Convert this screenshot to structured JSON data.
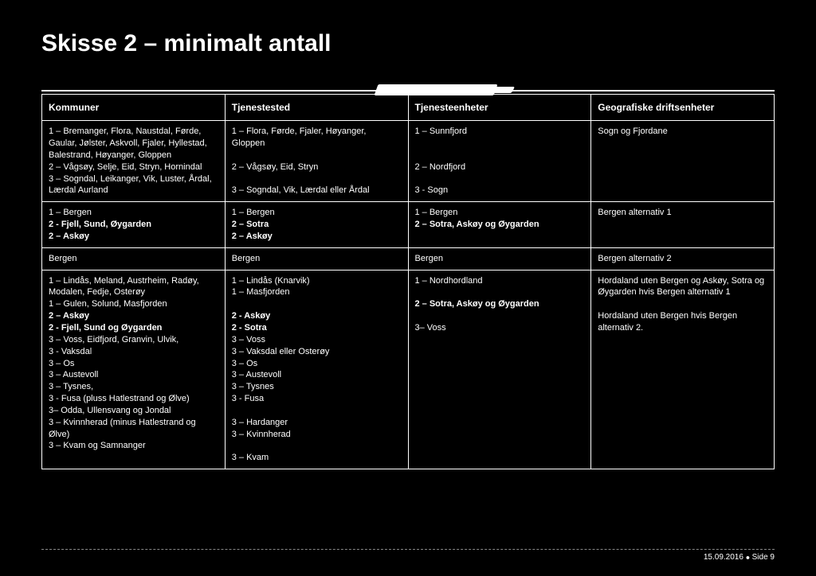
{
  "title": "Skisse 2 – minimalt antall",
  "headers": {
    "c1": "Kommuner",
    "c2": "Tjenestested",
    "c3": "Tjenesteenheter",
    "c4": "Geografiske driftsenheter"
  },
  "row1": {
    "c1": "1 – Bremanger, Flora, Naustdal, Førde, Gaular, Jølster, Askvoll, Fjaler, Hyllestad, Balestrand, Høyanger, Gloppen\n2 – Vågsøy, Selje, Eid, Stryn, Hornindal\n3 – Sogndal, Leikanger, Vik, Luster, Årdal, Lærdal Aurland",
    "c2": "1 – Flora, Førde, Fjaler, Høyanger, Gloppen\n\n2 – Vågsøy, Eid, Stryn\n\n3 – Sogndal, Vik, Lærdal eller Årdal",
    "c3": "1 – Sunnfjord\n\n\n2 – Nordfjord\n\n3 - Sogn",
    "c4": "Sogn og Fjordane"
  },
  "row2": {
    "c1_l1": "1 – Bergen",
    "c1_l2": "2 - Fjell, Sund, Øygarden",
    "c1_l3": "2 – Askøy",
    "c2_l1": "1 – Bergen",
    "c2_l2": "2 – Sotra",
    "c2_l3": "2 – Askøy",
    "c3_l1": "1 – Bergen",
    "c3_l2": "2 – Sotra, Askøy og Øygarden",
    "c4": "Bergen alternativ 1"
  },
  "row3": {
    "c1": "Bergen",
    "c2": "Bergen",
    "c3": "Bergen",
    "c4": "Bergen alternativ 2"
  },
  "row4": {
    "c1_a": "1 – Lindås, Meland, Austrheim, Radøy, Modalen, Fedje, Osterøy\n1 – Gulen, Solund, Masfjorden",
    "c1_b1": "2 – Askøy",
    "c1_b2": "2 - Fjell, Sund og Øygarden",
    "c1_c": "3 – Voss, Eidfjord, Granvin, Ulvik,\n3 - Vaksdal\n3 – Os\n3 – Austevoll\n3 – Tysnes,\n3 -  Fusa (pluss Hatlestrand og Ølve)\n3– Odda, Ullensvang og Jondal\n3 – Kvinnherad (minus Hatlestrand og Ølve)\n3 – Kvam og Samnanger",
    "c2_a": "1 – Lindås (Knarvik)\n1 – Masfjorden\n",
    "c2_b1": "2 - Askøy",
    "c2_b2": "2 - Sotra",
    "c2_c": "3 – Voss\n3 – Vaksdal eller Osterøy\n3 – Os\n3 – Austevoll\n3 – Tysnes\n3 - Fusa\n\n3 – Hardanger\n3 – Kvinnherad\n\n3 – Kvam",
    "c3_l1": "1 – Nordhordland",
    "c3_l2": " 2 – Sotra, Askøy og Øygarden",
    "c3_l3": "3– Voss",
    "c4": "Hordaland uten Bergen og Askøy, Sotra og Øygarden hvis Bergen alternativ 1\n\nHordaland uten Bergen hvis Bergen alternativ 2."
  },
  "footer": {
    "date": "15.09.2016",
    "page": "Side 9"
  }
}
